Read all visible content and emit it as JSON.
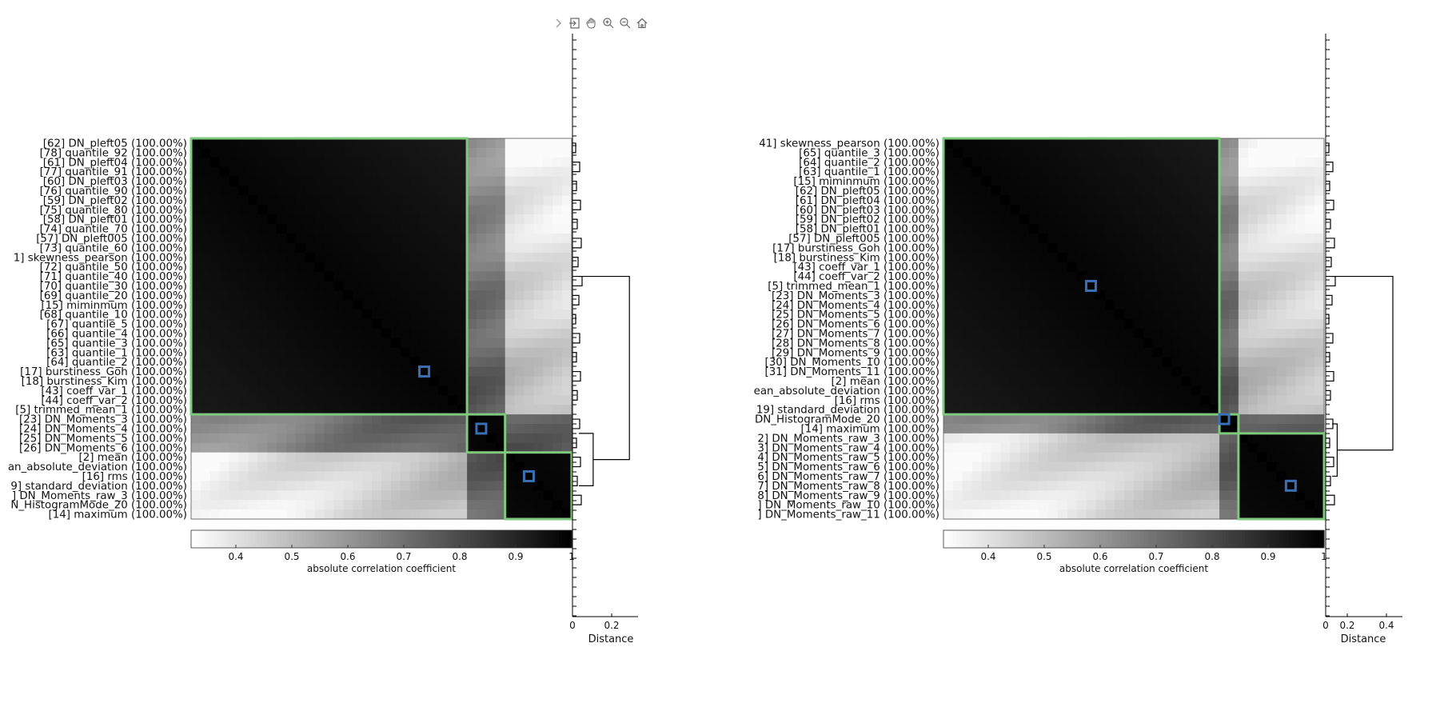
{
  "toolbar": {
    "icons": [
      "chevron-right-icon",
      "export-icon",
      "pan-icon",
      "zoom-in-icon",
      "zoom-out-icon",
      "home-icon"
    ]
  },
  "colors": {
    "cluster_box": "#7fc97f",
    "marker": "#3a6fb5",
    "axis": "#000000"
  },
  "chart_data": [
    {
      "type": "heatmap",
      "colormap": "gray-reversed",
      "colorbar": {
        "label": "absolute correlation coefficient",
        "ticks": [
          "0.4",
          "0.5",
          "0.6",
          "0.7",
          "0.8",
          "0.9",
          "1"
        ],
        "range": [
          0.32,
          1.0
        ]
      },
      "dendrogram": {
        "xlabel": "Distance",
        "xticks": [
          "0",
          "0.2"
        ],
        "xlim": [
          0,
          0.38
        ]
      },
      "rows": [
        "[62] DN_pleft05 (100.00%)",
        "[78] quantile_92 (100.00%)",
        "[61] DN_pleft04 (100.00%)",
        "[77] quantile_91 (100.00%)",
        "[60] DN_pleft03 (100.00%)",
        "[76] quantile_90 (100.00%)",
        "[59] DN_pleft02 (100.00%)",
        "[75] quantile_80 (100.00%)",
        "[58] DN_pleft01 (100.00%)",
        "[74] quantile_70 (100.00%)",
        "[57] DN_pleft005 (100.00%)",
        "[73] quantile_60 (100.00%)",
        "1] skewness_pearson (100.00%)",
        "[72] quantile_50 (100.00%)",
        "[71] quantile_40 (100.00%)",
        "[70] quantile_30 (100.00%)",
        "[69] quantile_20 (100.00%)",
        "[15] miminmum (100.00%)",
        "[68] quantile_10 (100.00%)",
        "[67] quantile_5 (100.00%)",
        "[66] quantile_4 (100.00%)",
        "[65] quantile_3 (100.00%)",
        "[63] quantile_1 (100.00%)",
        "[64] quantile_2 (100.00%)",
        "[17] burstiness_Goh (100.00%)",
        "[18] burstiness_Kim (100.00%)",
        "[43] coeff_var_1 (100.00%)",
        "[44] coeff_var_2 (100.00%)",
        "[5] trimmed_mean_1 (100.00%)",
        "[23] DN_Moments_3 (100.00%)",
        "[24] DN_Moments_4 (100.00%)",
        "[25] DN_Moments_5 (100.00%)",
        "[26] DN_Moments_6 (100.00%)",
        "[2] mean (100.00%)",
        "an_absolute_deviation (100.00%)",
        "[16] rms (100.00%)",
        "9] standard_deviation (100.00%)",
        "] DN_Moments_raw_3 (100.00%)",
        "N_HistogramMode_20 (100.00%)",
        "[14] maximum (100.00%)"
      ],
      "clusters": [
        {
          "start": 0,
          "end": 28,
          "marked_row": 24
        },
        {
          "start": 29,
          "end": 32,
          "marked_row": 30
        },
        {
          "start": 33,
          "end": 39,
          "marked_row": 35
        }
      ]
    },
    {
      "type": "heatmap",
      "colormap": "gray-reversed",
      "colorbar": {
        "label": "absolute correlation coefficient",
        "ticks": [
          "0.4",
          "0.5",
          "0.6",
          "0.7",
          "0.8",
          "0.9",
          "1"
        ],
        "range": [
          0.32,
          1.0
        ]
      },
      "dendrogram": {
        "xlabel": "Distance",
        "xticks": [
          "0",
          "0.2",
          "0.4"
        ],
        "xlim": [
          0,
          0.8
        ]
      },
      "rows": [
        "41] skewness_pearson (100.00%)",
        "[65] quantile_3 (100.00%)",
        "[64] quantile_2 (100.00%)",
        "[63] quantile_1 (100.00%)",
        "[15] miminmum (100.00%)",
        "[62] DN_pleft05 (100.00%)",
        "[61] DN_pleft04 (100.00%)",
        "[60] DN_pleft03 (100.00%)",
        "[59] DN_pleft02 (100.00%)",
        "[58] DN_pleft01 (100.00%)",
        "[57] DN_pleft005 (100.00%)",
        "[17] burstiness_Goh (100.00%)",
        "[18] burstiness_Kim (100.00%)",
        "[43] coeff_var_1 (100.00%)",
        "[44] coeff_var_2 (100.00%)",
        "[5] trimmed_mean_1 (100.00%)",
        "[23] DN_Moments_3 (100.00%)",
        "[24] DN_Moments_4 (100.00%)",
        "[25] DN_Moments_5 (100.00%)",
        "[26] DN_Moments_6 (100.00%)",
        "[27] DN_Moments_7 (100.00%)",
        "[28] DN_Moments_8 (100.00%)",
        "[29] DN_Moments_9 (100.00%)",
        "[30] DN_Moments_10 (100.00%)",
        "[31] DN_Moments_11 (100.00%)",
        "[2] mean (100.00%)",
        "ean_absolute_deviation (100.00%)",
        "[16] rms (100.00%)",
        "19] standard_deviation (100.00%)",
        "DN_HistogramMode_20 (100.00%)",
        "[14] maximum (100.00%)",
        "2] DN_Moments_raw_3 (100.00%)",
        "3] DN_Moments_raw_4 (100.00%)",
        "4] DN_Moments_raw_5 (100.00%)",
        "5] DN_Moments_raw_6 (100.00%)",
        "6] DN_Moments_raw_7 (100.00%)",
        "7] DN_Moments_raw_8 (100.00%)",
        "8] DN_Moments_raw_9 (100.00%)",
        "] DN_Moments_raw_10 (100.00%)",
        "] DN_Moments_raw_11 (100.00%)"
      ],
      "clusters": [
        {
          "start": 0,
          "end": 28,
          "marked_row": 15
        },
        {
          "start": 29,
          "end": 30,
          "marked_row": 29
        },
        {
          "start": 31,
          "end": 39,
          "marked_row": 36
        }
      ]
    }
  ]
}
